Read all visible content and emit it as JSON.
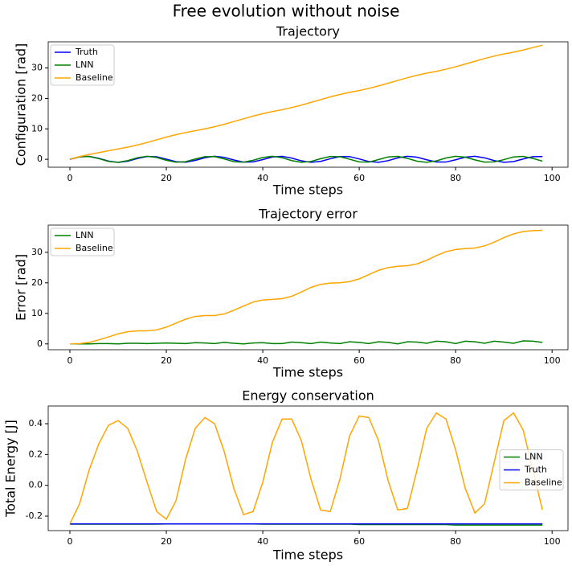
{
  "title": "Free evolution without noise",
  "chart_data": [
    {
      "type": "line",
      "title": "Trajectory",
      "xlabel": "Time steps",
      "ylabel": "Configuration [rad]",
      "x": [
        0,
        2,
        4,
        6,
        8,
        10,
        12,
        14,
        16,
        18,
        20,
        22,
        24,
        26,
        28,
        30,
        32,
        34,
        36,
        38,
        40,
        42,
        44,
        46,
        48,
        50,
        52,
        54,
        56,
        58,
        60,
        62,
        64,
        66,
        68,
        70,
        72,
        74,
        76,
        78,
        80,
        82,
        84,
        86,
        88,
        90,
        92,
        94,
        96,
        98
      ],
      "series": [
        {
          "name": "Truth",
          "color": "#0000ff",
          "values": [
            0,
            0.81,
            0.95,
            0.32,
            -0.58,
            -1.0,
            -0.61,
            0.28,
            0.94,
            0.83,
            0.04,
            -0.79,
            -0.96,
            -0.36,
            0.53,
            1.0,
            0.65,
            -0.23,
            -0.92,
            -0.86,
            -0.08,
            0.76,
            0.97,
            0.4,
            -0.5,
            -0.99,
            -0.68,
            0.19,
            0.91,
            0.88,
            0.12,
            -0.73,
            -0.98,
            -0.44,
            0.46,
            0.99,
            0.71,
            -0.15,
            -0.89,
            -0.9,
            -0.16,
            0.7,
            0.99,
            0.48,
            -0.42,
            -0.98,
            -0.74,
            0.11,
            0.87,
            0.91
          ]
        },
        {
          "name": "LNN",
          "color": "#008000",
          "values": [
            0,
            0.83,
            0.93,
            0.22,
            -0.69,
            -0.99,
            -0.43,
            0.52,
            1.0,
            0.61,
            -0.32,
            -0.96,
            -0.77,
            0.1,
            0.87,
            0.89,
            0.13,
            -0.77,
            -0.96,
            -0.33,
            0.61,
            1.0,
            0.52,
            -0.42,
            -0.98,
            -0.7,
            0.2,
            0.92,
            0.85,
            0.02,
            -0.85,
            -0.93,
            -0.09,
            0.78,
            0.97,
            0.31,
            -0.62,
            -0.99,
            -0.51,
            0.43,
            0.98,
            0.71,
            -0.19,
            -0.92,
            -0.85,
            -0.11,
            0.77,
            0.97,
            0.31,
            -0.6
          ]
        },
        {
          "name": "Baseline",
          "color": "#ffa500",
          "values": [
            0,
            0.9,
            1.6,
            2.2,
            2.8,
            3.4,
            4.0,
            4.7,
            5.5,
            6.4,
            7.3,
            8.1,
            8.8,
            9.4,
            10.0,
            10.7,
            11.5,
            12.4,
            13.3,
            14.2,
            15.0,
            15.7,
            16.3,
            17.0,
            17.8,
            18.7,
            19.6,
            20.5,
            21.3,
            22.0,
            22.6,
            23.3,
            24.1,
            25.0,
            25.9,
            26.8,
            27.6,
            28.3,
            28.9,
            29.6,
            30.4,
            31.3,
            32.2,
            33.1,
            33.9,
            34.6,
            35.2,
            35.9,
            36.7,
            37.5
          ]
        }
      ],
      "xlim": [
        -4.5,
        103.3
      ],
      "xticks": [
        0,
        20,
        40,
        60,
        80,
        100
      ],
      "ylim": [
        -2.6,
        38.6
      ],
      "yticks": [
        0,
        10,
        20,
        30
      ],
      "legend": "upper left"
    },
    {
      "type": "line",
      "title": "Trajectory error",
      "xlabel": "Time steps",
      "ylabel": "Error [rad]",
      "x": [
        0,
        2,
        4,
        6,
        8,
        10,
        12,
        14,
        16,
        18,
        20,
        22,
        24,
        26,
        28,
        30,
        32,
        34,
        36,
        38,
        40,
        42,
        44,
        46,
        48,
        50,
        52,
        54,
        56,
        58,
        60,
        62,
        64,
        66,
        68,
        70,
        72,
        74,
        76,
        78,
        80,
        82,
        84,
        86,
        88,
        90,
        92,
        94,
        96,
        98
      ],
      "series": [
        {
          "name": "LNN",
          "color": "#008000",
          "values": [
            0,
            0,
            0,
            0.1,
            0.1,
            0,
            0.2,
            0.2,
            0.1,
            0.2,
            0.3,
            0.2,
            0.1,
            0.4,
            0.3,
            0.1,
            0.5,
            0.2,
            0.0,
            0.3,
            0.4,
            0.1,
            0.1,
            0.6,
            0.4,
            0.1,
            0.6,
            0.3,
            0.1,
            0.7,
            0.5,
            0.1,
            0.7,
            0.5,
            0.0,
            0.7,
            0.6,
            0.2,
            0.9,
            0.7,
            0.1,
            0.9,
            0.7,
            0.2,
            0.9,
            0.6,
            0.2,
            1.0,
            0.9,
            0.5
          ]
        },
        {
          "name": "Baseline",
          "color": "#ffa500",
          "values": [
            0,
            0.1,
            0.5,
            1.3,
            2.3,
            3.3,
            4.0,
            4.3,
            4.3,
            4.6,
            5.5,
            6.8,
            8.1,
            9.0,
            9.3,
            9.3,
            9.8,
            11.0,
            12.4,
            13.7,
            14.4,
            14.6,
            14.8,
            15.6,
            17.0,
            18.5,
            19.5,
            19.9,
            20.0,
            20.4,
            21.3,
            22.7,
            24.1,
            25.0,
            25.4,
            25.6,
            26.2,
            27.4,
            28.9,
            30.2,
            30.9,
            31.2,
            31.4,
            32.1,
            33.3,
            34.8,
            36.0,
            36.8,
            37.1,
            37.2
          ]
        }
      ],
      "xlim": [
        -4.5,
        103.3
      ],
      "xticks": [
        0,
        20,
        40,
        60,
        80,
        100
      ],
      "ylim": [
        -1.9,
        38.9
      ],
      "yticks": [
        0,
        10,
        20,
        30
      ],
      "legend": "upper left"
    },
    {
      "type": "line",
      "title": "Energy conservation",
      "xlabel": "Time steps",
      "ylabel": "Total Energy [J]",
      "x": [
        0,
        2,
        4,
        6,
        8,
        10,
        12,
        14,
        16,
        18,
        20,
        22,
        24,
        26,
        28,
        30,
        32,
        34,
        36,
        38,
        40,
        42,
        44,
        46,
        48,
        50,
        52,
        54,
        56,
        58,
        60,
        62,
        64,
        66,
        68,
        70,
        72,
        74,
        76,
        78,
        80,
        82,
        84,
        86,
        88,
        90,
        92,
        94,
        96,
        98
      ],
      "series": [
        {
          "name": "LNN",
          "color": "#008000",
          "values": [
            -0.252,
            -0.252,
            -0.252,
            -0.252,
            -0.252,
            -0.252,
            -0.252,
            -0.252,
            -0.252,
            -0.252,
            -0.251,
            -0.251,
            -0.251,
            -0.251,
            -0.251,
            -0.251,
            -0.251,
            -0.251,
            -0.251,
            -0.251,
            -0.252,
            -0.252,
            -0.252,
            -0.252,
            -0.252,
            -0.252,
            -0.252,
            -0.252,
            -0.252,
            -0.252,
            -0.255,
            -0.255,
            -0.255,
            -0.255,
            -0.255,
            -0.255,
            -0.255,
            -0.255,
            -0.255,
            -0.255,
            -0.258,
            -0.258,
            -0.258,
            -0.258,
            -0.258,
            -0.258,
            -0.258,
            -0.258,
            -0.258,
            -0.258
          ]
        },
        {
          "name": "Truth",
          "color": "#0000ff",
          "values": [
            -0.25,
            -0.25,
            -0.25,
            -0.25,
            -0.25,
            -0.25,
            -0.25,
            -0.25,
            -0.25,
            -0.25,
            -0.25,
            -0.25,
            -0.25,
            -0.25,
            -0.25,
            -0.25,
            -0.25,
            -0.25,
            -0.25,
            -0.25,
            -0.25,
            -0.25,
            -0.25,
            -0.25,
            -0.25,
            -0.25,
            -0.25,
            -0.25,
            -0.25,
            -0.25,
            -0.25,
            -0.25,
            -0.25,
            -0.25,
            -0.25,
            -0.25,
            -0.25,
            -0.25,
            -0.25,
            -0.25,
            -0.25,
            -0.25,
            -0.25,
            -0.25,
            -0.25,
            -0.25,
            -0.25,
            -0.25,
            -0.25,
            -0.25
          ]
        },
        {
          "name": "Baseline",
          "color": "#ffa500",
          "values": [
            -0.25,
            -0.12,
            0.1,
            0.27,
            0.39,
            0.42,
            0.37,
            0.22,
            0.02,
            -0.17,
            -0.22,
            -0.1,
            0.17,
            0.37,
            0.44,
            0.4,
            0.22,
            -0.02,
            -0.19,
            -0.17,
            0.02,
            0.28,
            0.43,
            0.43,
            0.29,
            0.04,
            -0.16,
            -0.17,
            0.04,
            0.32,
            0.45,
            0.44,
            0.29,
            0.03,
            -0.16,
            -0.15,
            0.1,
            0.37,
            0.47,
            0.43,
            0.23,
            -0.02,
            -0.18,
            -0.12,
            0.15,
            0.42,
            0.47,
            0.36,
            0.1,
            -0.16
          ]
        }
      ],
      "xlim": [
        -4.5,
        103.3
      ],
      "xticks": [
        0,
        20,
        40,
        60,
        80,
        100
      ],
      "ylim": [
        -0.294,
        0.515
      ],
      "yticks": [
        -0.2,
        {
          "value": 0,
          "label": "0.0"
        },
        0.2,
        0.4
      ],
      "legend": "center right"
    }
  ]
}
